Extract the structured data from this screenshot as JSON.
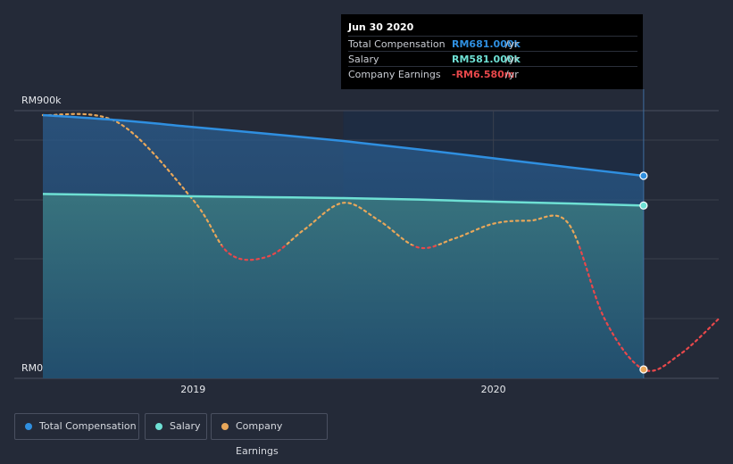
{
  "colors": {
    "background": "#242a38",
    "total_compensation": "#2f8fe0",
    "salary": "#6ee0d4",
    "earnings_positive": "#e8a75a",
    "earnings_negative": "#e8484b",
    "grid": "#3a404d"
  },
  "tooltip": {
    "date": "Jun 30 2020",
    "rows": [
      {
        "label": "Total Compensation",
        "value": "RM681.000k",
        "unit": "/yr",
        "color_key": "total_compensation"
      },
      {
        "label": "Salary",
        "value": "RM581.000k",
        "unit": "/yr",
        "color_key": "salary"
      },
      {
        "label": "Company Earnings",
        "value": "-RM6.580m",
        "unit": "/yr",
        "color_key": "earnings_negative"
      }
    ]
  },
  "legend": [
    {
      "label": "Total Compensation",
      "color_key": "total_compensation"
    },
    {
      "label": "Salary",
      "color_key": "salary"
    },
    {
      "label": "Company Earnings",
      "color_key": "earnings_positive"
    }
  ],
  "chart_data": {
    "type": "line",
    "title": "",
    "xlabel": "",
    "ylabel": "",
    "y_tick_labels": [
      "RM0",
      "RM900k"
    ],
    "ylim": [
      0,
      900
    ],
    "x_range": [
      2018.5,
      2020.75
    ],
    "x_tick_labels": [
      "2019",
      "2020"
    ],
    "x_tick_values": [
      2019.0,
      2020.0
    ],
    "highlight_x": 2020.5,
    "series": [
      {
        "name": "Total Compensation",
        "unit": "RM thousands",
        "x": [
          2018.5,
          2018.75,
          2019.0,
          2019.25,
          2019.5,
          2019.75,
          2020.0,
          2020.25,
          2020.5
        ],
        "values": [
          885,
          868,
          845,
          822,
          798,
          770,
          740,
          710,
          681
        ]
      },
      {
        "name": "Salary",
        "unit": "RM thousands",
        "x": [
          2018.5,
          2018.75,
          2019.0,
          2019.25,
          2019.5,
          2019.75,
          2020.0,
          2020.25,
          2020.5
        ],
        "values": [
          620,
          616,
          612,
          609,
          606,
          601,
          594,
          588,
          581
        ]
      },
      {
        "name": "Company Earnings",
        "unit": "relative (plotted on independent scale)",
        "x": [
          2018.5,
          2018.75,
          2019.0,
          2019.12,
          2019.25,
          2019.37,
          2019.5,
          2019.62,
          2019.75,
          2019.87,
          2020.0,
          2020.12,
          2020.25,
          2020.37,
          2020.5,
          2020.62,
          2020.75
        ],
        "values": [
          885,
          860,
          600,
          420,
          410,
          500,
          590,
          530,
          440,
          470,
          520,
          530,
          520,
          200,
          30,
          80,
          200
        ]
      }
    ]
  }
}
